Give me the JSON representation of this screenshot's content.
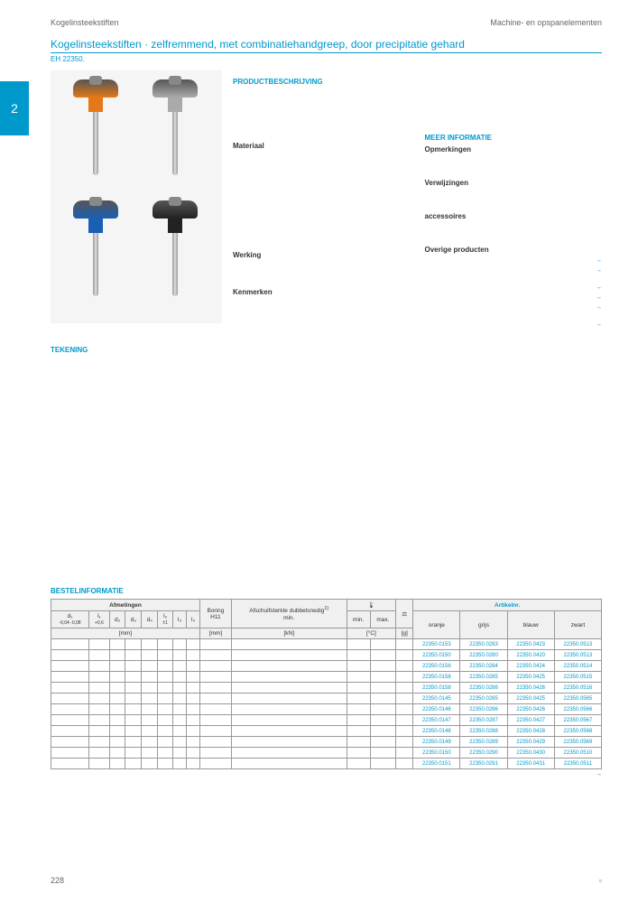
{
  "header": {
    "left": "Kogelinsteekstiften",
    "right": "Machine- en opspanelementen"
  },
  "tab": "2",
  "title": "Kogelinsteekstiften · zelfremmend, met combinatiehandgreep, door precipitatie gehard",
  "subtitle": "EH 22350.",
  "sections": {
    "productbeschrijving": "PRODUCTBESCHRIJVING",
    "materiaal": "Materiaal",
    "werking": "Werking",
    "kenmerken": "Kenmerken",
    "meerinfo": "MEER INFORMATIE",
    "opmerkingen": "Opmerkingen",
    "verwijzingen": "Verwijzingen",
    "accessoires": "accessoires",
    "overige": "Overige producten",
    "tekening": "TEKENING",
    "bestel": "BESTELINFORMATIE"
  },
  "tableHeaders": {
    "afmetingen": "Afmetingen",
    "boring": "Boring",
    "boringSub": "H11",
    "afschuif": "Afschuifsterkte dubbelsnedig",
    "afschuifSub": "min.",
    "min": "min.",
    "max": "max.",
    "artikelnr": "Artikelnr.",
    "d1": "d₁",
    "d1sub": "-0,04 -0,08",
    "l1": "l₁",
    "l1sub": "+0,6",
    "d2": "d₂",
    "d3": "d₃",
    "d4": "d₄",
    "l2": "l₂",
    "l2sub": "±1",
    "l3": "l₃",
    "l4": "l₄",
    "mm": "[mm]",
    "kn": "[kN]",
    "c": "[°C]",
    "g": "[g]",
    "oranje": "oranje",
    "grijs": "grijs",
    "blauw": "blauw",
    "zwart": "zwart"
  },
  "articles": [
    {
      "o": "22350.0153",
      "g": "22350.0283",
      "b": "22350.0423",
      "z": "22350.0513"
    },
    {
      "o": "22350.0150",
      "g": "22350.0280",
      "b": "22350.0420",
      "z": "22350.0513"
    },
    {
      "o": "22350.0156",
      "g": "22350.0284",
      "b": "22350.0424",
      "z": "22350.0514"
    },
    {
      "o": "22350.0158",
      "g": "22350.0285",
      "b": "22350.0425",
      "z": "22350.0515"
    },
    {
      "o": "22350.0158",
      "g": "22350.0286",
      "b": "22350.0426",
      "z": "22350.0516"
    },
    {
      "o": "22350.0145",
      "g": "22350.0285",
      "b": "22350.0425",
      "z": "22350.0565"
    },
    {
      "o": "22350.0146",
      "g": "22350.0286",
      "b": "22350.0426",
      "z": "22350.0566"
    },
    {
      "o": "22350.0147",
      "g": "22350.0287",
      "b": "22350.0427",
      "z": "22350.0567"
    },
    {
      "o": "22350.0148",
      "g": "22350.0288",
      "b": "22350.0428",
      "z": "22350.0568"
    },
    {
      "o": "22350.0149",
      "g": "22350.0289",
      "b": "22350.0429",
      "z": "22350.0569"
    },
    {
      "o": "22350.0150",
      "g": "22350.0290",
      "b": "22350.0430",
      "z": "22350.0510"
    },
    {
      "o": "22350.0151",
      "g": "22350.0291",
      "b": "22350.0431",
      "z": "22350.0511"
    }
  ],
  "pageNum": "228",
  "more": "→"
}
